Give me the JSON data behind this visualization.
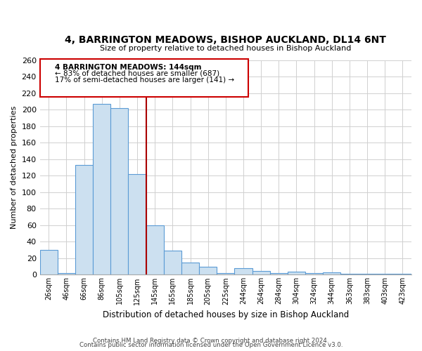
{
  "title": "4, BARRINGTON MEADOWS, BISHOP AUCKLAND, DL14 6NT",
  "subtitle": "Size of property relative to detached houses in Bishop Auckland",
  "xlabel": "Distribution of detached houses by size in Bishop Auckland",
  "ylabel": "Number of detached properties",
  "bar_labels": [
    "26sqm",
    "46sqm",
    "66sqm",
    "86sqm",
    "105sqm",
    "125sqm",
    "145sqm",
    "165sqm",
    "185sqm",
    "205sqm",
    "225sqm",
    "244sqm",
    "264sqm",
    "284sqm",
    "304sqm",
    "324sqm",
    "344sqm",
    "363sqm",
    "383sqm",
    "403sqm",
    "423sqm"
  ],
  "bar_values": [
    30,
    2,
    133,
    207,
    202,
    122,
    60,
    29,
    15,
    10,
    2,
    8,
    5,
    2,
    4,
    2,
    3,
    1,
    1,
    1,
    1
  ],
  "bar_color": "#cce0f0",
  "bar_edge_color": "#5b9bd5",
  "marker_bar_index": 6,
  "marker_line_color": "#aa0000",
  "ylim": [
    0,
    260
  ],
  "yticks": [
    0,
    20,
    40,
    60,
    80,
    100,
    120,
    140,
    160,
    180,
    200,
    220,
    240,
    260
  ],
  "annotation_line1": "4 BARRINGTON MEADOWS: 144sqm",
  "annotation_line2": "← 83% of detached houses are smaller (687)",
  "annotation_line3": "17% of semi-detached houses are larger (141) →",
  "annotation_box_color": "#ffffff",
  "annotation_box_edge": "#cc0000",
  "footnote1": "Contains HM Land Registry data © Crown copyright and database right 2024.",
  "footnote2": "Contains public sector information licensed under the Open Government Licence v3.0.",
  "background_color": "#ffffff",
  "grid_color": "#d0d0d0"
}
